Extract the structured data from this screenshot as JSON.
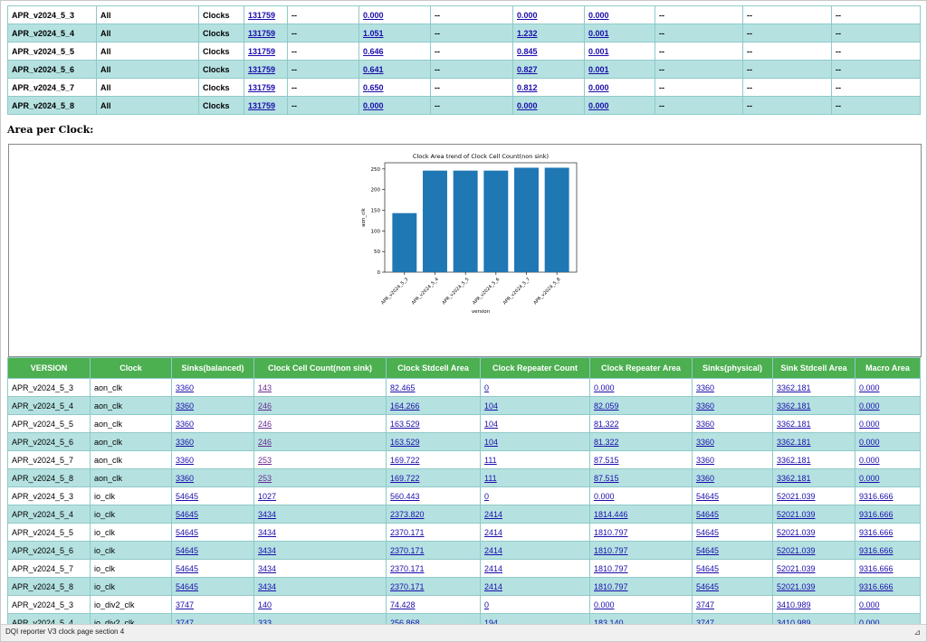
{
  "top_rows": [
    [
      "APR_v2024_5_3",
      "All",
      "Clocks",
      "131759",
      "--",
      "0.000",
      "--",
      "0.000",
      "0.000",
      "--",
      "--",
      "--"
    ],
    [
      "APR_v2024_5_4",
      "All",
      "Clocks",
      "131759",
      "--",
      "1.051",
      "--",
      "1.232",
      "0.001",
      "--",
      "--",
      "--"
    ],
    [
      "APR_v2024_5_5",
      "All",
      "Clocks",
      "131759",
      "--",
      "0.646",
      "--",
      "0.845",
      "0.001",
      "--",
      "--",
      "--"
    ],
    [
      "APR_v2024_5_6",
      "All",
      "Clocks",
      "131759",
      "--",
      "0.641",
      "--",
      "0.827",
      "0.001",
      "--",
      "--",
      "--"
    ],
    [
      "APR_v2024_5_7",
      "All",
      "Clocks",
      "131759",
      "--",
      "0.650",
      "--",
      "0.812",
      "0.000",
      "--",
      "--",
      "--"
    ],
    [
      "APR_v2024_5_8",
      "All",
      "Clocks",
      "131759",
      "--",
      "0.000",
      "--",
      "0.000",
      "0.000",
      "--",
      "--",
      "--"
    ]
  ],
  "top_link_cols": [
    3,
    5,
    7,
    8
  ],
  "section_title": "Area per Clock:",
  "chart_data": {
    "type": "bar",
    "title": "Clock Area trend of Clock Cell Count(non sink)",
    "xlabel": "version",
    "ylabel": "aon_clk",
    "categories": [
      "APR_v2024_5_3",
      "APR_v2024_5_4",
      "APR_v2024_5_5",
      "APR_v2024_5_6",
      "APR_v2024_5_7",
      "APR_v2024_5_8"
    ],
    "values": [
      143,
      246,
      246,
      246,
      253,
      253
    ],
    "ylim": [
      0,
      265
    ],
    "yticks": [
      0,
      50,
      100,
      150,
      200,
      250
    ],
    "color": "#1f77b4",
    "grid": false
  },
  "bottom_headers": [
    "VERSION",
    "Clock",
    "Sinks(balanced)",
    "Clock Cell Count(non sink)",
    "Clock Stdcell Area",
    "Clock Repeater Count",
    "Clock Repeater Area",
    "Sinks(physical)",
    "Sink Stdcell Area",
    "Macro Area"
  ],
  "bottom_rows": [
    [
      "APR_v2024_5_3",
      "aon_clk",
      "3360",
      "143",
      "82.465",
      "0",
      "0.000",
      "3360",
      "3362.181",
      "0.000"
    ],
    [
      "APR_v2024_5_4",
      "aon_clk",
      "3360",
      "246",
      "164.266",
      "104",
      "82.059",
      "3360",
      "3362.181",
      "0.000"
    ],
    [
      "APR_v2024_5_5",
      "aon_clk",
      "3360",
      "246",
      "163.529",
      "104",
      "81.322",
      "3360",
      "3362.181",
      "0.000"
    ],
    [
      "APR_v2024_5_6",
      "aon_clk",
      "3360",
      "246",
      "163.529",
      "104",
      "81.322",
      "3360",
      "3362.181",
      "0.000"
    ],
    [
      "APR_v2024_5_7",
      "aon_clk",
      "3360",
      "253",
      "169.722",
      "111",
      "87.515",
      "3360",
      "3362.181",
      "0.000"
    ],
    [
      "APR_v2024_5_8",
      "aon_clk",
      "3360",
      "253",
      "169.722",
      "111",
      "87.515",
      "3360",
      "3362.181",
      "0.000"
    ],
    [
      "APR_v2024_5_3",
      "io_clk",
      "54645",
      "1027",
      "560.443",
      "0",
      "0.000",
      "54645",
      "52021.039",
      "9316.666"
    ],
    [
      "APR_v2024_5_4",
      "io_clk",
      "54645",
      "3434",
      "2373.820",
      "2414",
      "1814.446",
      "54645",
      "52021.039",
      "9316.666"
    ],
    [
      "APR_v2024_5_5",
      "io_clk",
      "54645",
      "3434",
      "2370.171",
      "2414",
      "1810.797",
      "54645",
      "52021.039",
      "9316.666"
    ],
    [
      "APR_v2024_5_6",
      "io_clk",
      "54645",
      "3434",
      "2370.171",
      "2414",
      "1810.797",
      "54645",
      "52021.039",
      "9316.666"
    ],
    [
      "APR_v2024_5_7",
      "io_clk",
      "54645",
      "3434",
      "2370.171",
      "2414",
      "1810.797",
      "54645",
      "52021.039",
      "9316.666"
    ],
    [
      "APR_v2024_5_8",
      "io_clk",
      "54645",
      "3434",
      "2370.171",
      "2414",
      "1810.797",
      "54645",
      "52021.039",
      "9316.666"
    ],
    [
      "APR_v2024_5_3",
      "io_div2_clk",
      "3747",
      "140",
      "74.428",
      "0",
      "0.000",
      "3747",
      "3410.989",
      "0.000"
    ],
    [
      "APR_v2024_5_4",
      "io_div2_clk",
      "3747",
      "333",
      "256.868",
      "194",
      "183.140",
      "3747",
      "3410.989",
      "0.000"
    ]
  ],
  "visited_col": 3,
  "status_bar": {
    "text": "DQI reporter V3 clock page section 4"
  }
}
